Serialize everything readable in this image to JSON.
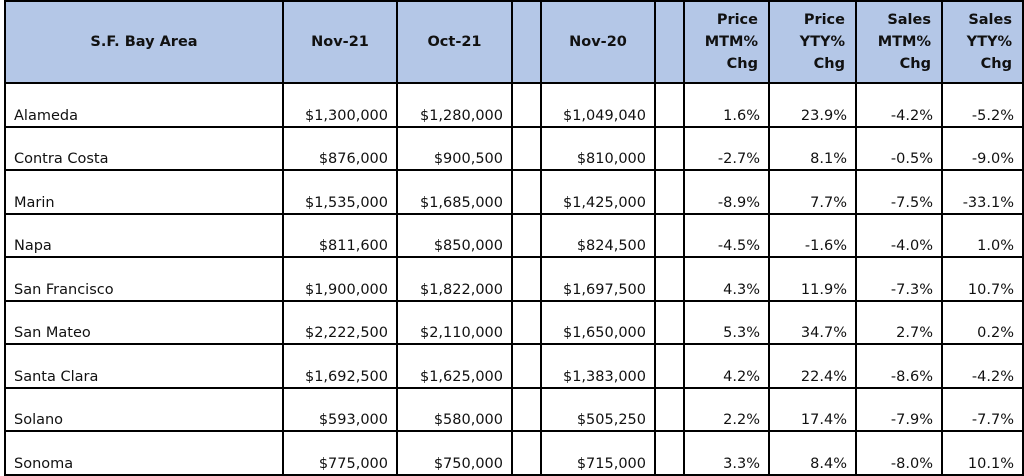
{
  "table": {
    "header": [
      [
        "S.F. Bay Area"
      ],
      [
        "Nov-21"
      ],
      [
        "Oct-21"
      ],
      [
        "Nov-20"
      ],
      [
        "Price",
        "MTM%",
        "Chg"
      ],
      [
        "Price",
        "YTY%",
        "Chg"
      ],
      [
        "Sales",
        "MTM%",
        "Chg"
      ],
      [
        "Sales",
        "YTY%",
        "Chg"
      ]
    ],
    "rows": [
      [
        "Alameda",
        "$1,300,000",
        "$1,280,000",
        "$1,049,040",
        "1.6%",
        "23.9%",
        "-4.2%",
        "-5.2%"
      ],
      [
        "Contra Costa",
        "$876,000",
        "$900,500",
        "$810,000",
        "-2.7%",
        "8.1%",
        "-0.5%",
        "-9.0%"
      ],
      [
        "Marin",
        "$1,535,000",
        "$1,685,000",
        "$1,425,000",
        "-8.9%",
        "7.7%",
        "-7.5%",
        "-33.1%"
      ],
      [
        "Napa",
        "$811,600",
        "$850,000",
        "$824,500",
        "-4.5%",
        "-1.6%",
        "-4.0%",
        "1.0%"
      ],
      [
        "San Francisco",
        "$1,900,000",
        "$1,822,000",
        "$1,697,500",
        "4.3%",
        "11.9%",
        "-7.3%",
        "10.7%"
      ],
      [
        "San Mateo",
        "$2,222,500",
        "$2,110,000",
        "$1,650,000",
        "5.3%",
        "34.7%",
        "2.7%",
        "0.2%"
      ],
      [
        "Santa Clara",
        "$1,692,500",
        "$1,625,000",
        "$1,383,000",
        "4.2%",
        "22.4%",
        "-8.6%",
        "-4.2%"
      ],
      [
        "Solano",
        "$593,000",
        "$580,000",
        "$505,250",
        "2.2%",
        "17.4%",
        "-7.9%",
        "-7.7%"
      ],
      [
        "Sonoma",
        "$775,000",
        "$750,000",
        "$715,000",
        "3.3%",
        "8.4%",
        "-8.0%",
        "10.1%"
      ]
    ]
  }
}
